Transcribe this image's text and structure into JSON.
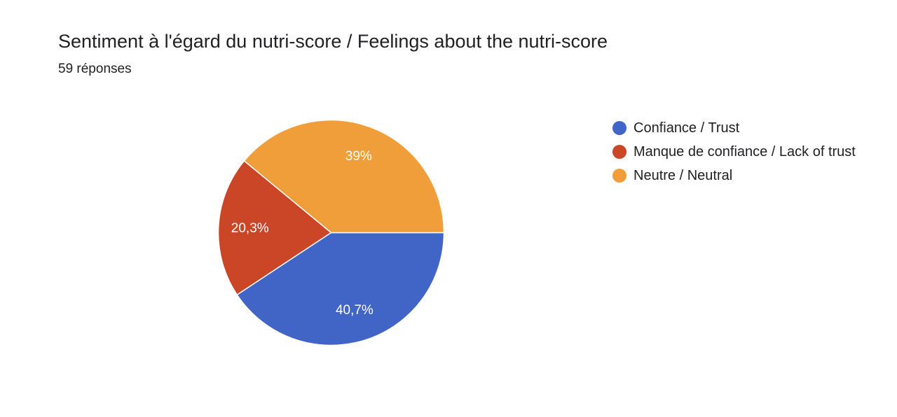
{
  "header": {
    "title": "Sentiment à l'égard du nutri-score / Feelings about the nutri-score",
    "responses": "59 réponses"
  },
  "chart_data": {
    "type": "pie",
    "title": "Sentiment à l'égard du nutri-score / Feelings about the nutri-score",
    "subtitle": "59 réponses",
    "legend_position": "right",
    "slices": [
      {
        "name": "Confiance / Trust",
        "value": 40.7,
        "label": "40,7%",
        "color": "#4065c6"
      },
      {
        "name": "Manque de confiance / Lack of trust",
        "value": 20.3,
        "label": "20,3%",
        "color": "#cb4627"
      },
      {
        "name": "Neutre / Neutral",
        "value": 39.0,
        "label": "39%",
        "color": "#f09e39"
      }
    ]
  }
}
